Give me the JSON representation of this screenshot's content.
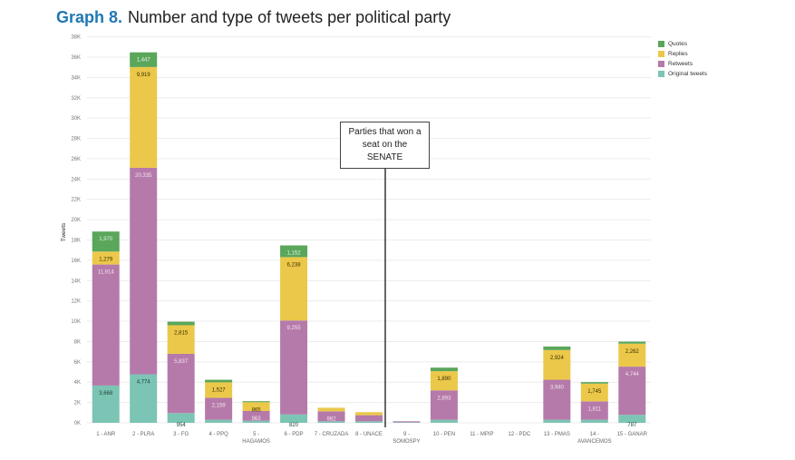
{
  "title": {
    "graph_number": "Graph 8.",
    "text": "Number and type of tweets per political party"
  },
  "annotation": {
    "lines": [
      "Parties that won a",
      "seat on the",
      "SENATE"
    ]
  },
  "colors": {
    "Original tweets": "#7cc4b4",
    "Retweets": "#b57aaa",
    "Replies": "#ecc84a",
    "Quotes": "#5aa65a"
  },
  "chart_data": {
    "type": "bar",
    "stacked": true,
    "ylabel": "Tweets",
    "ylim": [
      0,
      38000
    ],
    "yticks": [
      "0K",
      "2K",
      "4K",
      "6K",
      "8K",
      "10K",
      "12K",
      "14K",
      "16K",
      "18K",
      "20K",
      "22K",
      "24K",
      "26K",
      "28K",
      "30K",
      "32K",
      "34K",
      "36K",
      "38K"
    ],
    "grid": true,
    "legend_position": "top-right",
    "categories": [
      [
        "1 - ANR"
      ],
      [
        "2 - PLRA"
      ],
      [
        "3 - FG"
      ],
      [
        "4 - PPQ"
      ],
      [
        "5 -",
        "HAGAMOS"
      ],
      [
        "6 - PDP"
      ],
      [
        "7 - CRUZADA"
      ],
      [
        "8 - UNACE"
      ],
      [
        "9 -",
        "SOMOSPY"
      ],
      [
        "10 - PEN"
      ],
      [
        "11 - MPIP"
      ],
      [
        "12 - PDC"
      ],
      [
        "13 - PMAS"
      ],
      [
        "14 -",
        "AVANCEMOS"
      ],
      [
        "15 - GANAR"
      ]
    ],
    "series": [
      {
        "name": "Original tweets",
        "values": [
          3668,
          4774,
          954,
          300,
          200,
          820,
          150,
          150,
          50,
          300,
          0,
          0,
          300,
          300,
          787
        ],
        "labels": [
          "3,668",
          "4,774",
          "954",
          "",
          "",
          "820",
          "",
          "",
          "",
          "",
          "",
          "",
          "",
          "",
          "787"
        ]
      },
      {
        "name": "Retweets",
        "values": [
          11914,
          20335,
          5837,
          2159,
          963,
          9255,
          982,
          600,
          100,
          2893,
          0,
          0,
          3940,
          1811,
          4744
        ],
        "labels": [
          "11,914",
          "20,335",
          "5,837",
          "2,159",
          "963",
          "9,255",
          "982",
          "",
          "",
          "2,893",
          "",
          "",
          "3,940",
          "1,811",
          "4,744"
        ]
      },
      {
        "name": "Replies",
        "values": [
          1279,
          9919,
          2815,
          1527,
          865,
          6238,
          350,
          300,
          0,
          1890,
          0,
          0,
          2924,
          1745,
          2262
        ],
        "labels": [
          "1,279",
          "9,919",
          "2,815",
          "1,527",
          "865",
          "6,238",
          "",
          "",
          "",
          "1,890",
          "",
          "",
          "2,924",
          "1,745",
          "2,262"
        ]
      },
      {
        "name": "Quotes",
        "values": [
          1970,
          1447,
          350,
          250,
          100,
          1152,
          0,
          0,
          0,
          350,
          0,
          0,
          350,
          150,
          200
        ],
        "labels": [
          "1,970",
          "1,447",
          "",
          "",
          "",
          "1,152",
          "",
          "",
          "",
          "",
          "",
          "",
          "",
          "",
          ""
        ]
      }
    ],
    "legend_order": [
      "Quotes",
      "Replies",
      "Retweets",
      "Original tweets"
    ]
  }
}
